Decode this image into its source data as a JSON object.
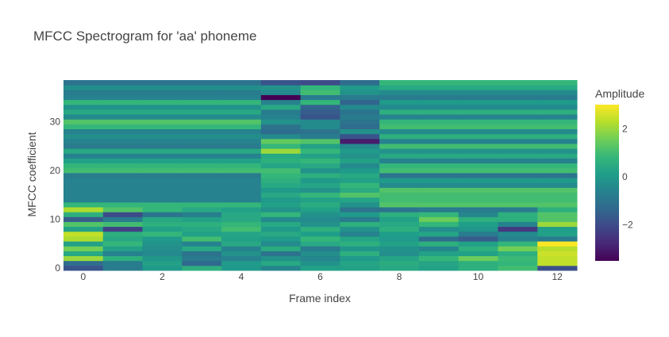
{
  "chart_data": {
    "type": "heatmap",
    "title": "MFCC Spectrogram for 'aa' phoneme",
    "xlabel": "Frame index",
    "ylabel": "MFCC coefficient",
    "x": [
      0,
      1,
      2,
      3,
      4,
      5,
      6,
      7,
      8,
      9,
      10,
      11,
      12
    ],
    "y_range": [
      0,
      38
    ],
    "xticks": [
      0,
      2,
      4,
      6,
      8,
      10,
      12
    ],
    "yticks": [
      0,
      10,
      20,
      30
    ],
    "colorbar": {
      "title": "Amplitude",
      "range": [
        -3.5,
        3.0
      ],
      "ticks": [
        2,
        0,
        -2
      ],
      "tick_labels": [
        "2",
        "0",
        "−2"
      ]
    },
    "colorscale": [
      "#440154",
      "#482878",
      "#3e4989",
      "#31688e",
      "#26828e",
      "#1f9e89",
      "#35b779",
      "#6ece58",
      "#b5de2b",
      "#fde725"
    ],
    "z": [
      [
        -1.8,
        -0.8,
        0.0,
        0.6,
        0.0,
        -0.5,
        0.2,
        0.2,
        0.4,
        0.2,
        0.6,
        1.0,
        -1.9
      ],
      [
        -1.2,
        -0.8,
        0.2,
        -1.3,
        0.0,
        0.4,
        -0.2,
        0.3,
        0.5,
        0.3,
        0.6,
        0.8,
        2.4
      ],
      [
        2.0,
        0.6,
        -0.1,
        -0.8,
        -0.6,
        -0.2,
        -0.5,
        0.0,
        0.3,
        0.8,
        1.5,
        0.9,
        2.4
      ],
      [
        0.4,
        -0.6,
        -0.4,
        -1.0,
        -0.2,
        -1.0,
        -0.3,
        0.6,
        -0.3,
        0.2,
        0.2,
        0.6,
        2.5
      ],
      [
        1.6,
        0.2,
        -0.3,
        0.4,
        -0.6,
        0.5,
        -0.8,
        -0.1,
        -0.2,
        -0.5,
        0.6,
        1.6,
        2.3
      ],
      [
        0.2,
        0.8,
        -0.2,
        -0.6,
        0.4,
        -0.4,
        0.4,
        0.6,
        0.2,
        0.6,
        0.2,
        0.8,
        3.0
      ],
      [
        2.2,
        0.4,
        0.0,
        1.0,
        0.2,
        0.0,
        0.8,
        0.3,
        0.0,
        -1.2,
        -1.6,
        -0.6,
        -0.8
      ],
      [
        2.4,
        0.6,
        0.8,
        0.2,
        0.3,
        0.4,
        0.1,
        -0.6,
        0.1,
        0.3,
        -0.8,
        -0.4,
        0.2
      ],
      [
        0.2,
        -2.2,
        0.2,
        0.4,
        1.0,
        0.0,
        0.6,
        -0.2,
        0.6,
        -0.3,
        -0.1,
        -2.4,
        0.1
      ],
      [
        1.2,
        1.0,
        0.6,
        0.6,
        0.8,
        0.4,
        -0.2,
        0.6,
        0.4,
        0.8,
        0.1,
        -0.6,
        2.0
      ],
      [
        -1.6,
        -0.8,
        0.4,
        0.2,
        0.4,
        -0.4,
        -0.4,
        -0.8,
        0.2,
        1.5,
        0.6,
        0.6,
        1.2
      ],
      [
        0.6,
        -2.0,
        -1.0,
        -0.7,
        0.4,
        0.8,
        -0.2,
        0.0,
        0.6,
        0.8,
        -0.5,
        0.6,
        1.2
      ],
      [
        2.2,
        1.2,
        0.8,
        0.4,
        0.2,
        -0.2,
        0.2,
        -1.0,
        -1.0,
        -0.8,
        -0.8,
        -0.8,
        0.6
      ],
      [
        0.8,
        0.8,
        0.8,
        0.8,
        0.8,
        0.2,
        0.5,
        -0.2,
        1.2,
        1.2,
        1.2,
        1.2,
        1.2
      ],
      [
        -0.6,
        -0.6,
        -0.6,
        -0.6,
        -0.6,
        0.0,
        0.2,
        0.3,
        1.0,
        1.0,
        1.0,
        1.0,
        1.0
      ],
      [
        -0.6,
        -0.6,
        -0.6,
        -0.6,
        -0.6,
        0.4,
        0.8,
        1.2,
        1.0,
        1.0,
        1.0,
        1.0,
        1.0
      ],
      [
        -0.6,
        -0.6,
        -0.6,
        -0.6,
        -0.6,
        0.0,
        -0.2,
        0.5,
        1.2,
        1.2,
        1.2,
        1.2,
        1.2
      ],
      [
        -0.6,
        -0.6,
        -0.6,
        -0.6,
        -0.6,
        0.4,
        0.3,
        0.8,
        -0.4,
        -0.4,
        -0.4,
        -0.4,
        -0.4
      ],
      [
        -0.6,
        -0.6,
        -0.6,
        -0.6,
        -0.6,
        0.6,
        0.0,
        0.2,
        0.0,
        0.0,
        0.0,
        0.0,
        0.0
      ],
      [
        -0.8,
        -0.8,
        -0.8,
        -0.8,
        -0.8,
        0.8,
        0.6,
        0.4,
        -1.0,
        -1.0,
        -1.0,
        -1.0,
        -1.0
      ],
      [
        1.0,
        1.0,
        1.0,
        1.0,
        1.0,
        1.0,
        -0.2,
        0.0,
        1.0,
        1.0,
        1.0,
        1.0,
        1.0
      ],
      [
        0.8,
        0.8,
        0.8,
        0.8,
        0.8,
        0.3,
        0.4,
        -0.4,
        0.8,
        0.8,
        0.8,
        0.8,
        0.8
      ],
      [
        0.2,
        0.2,
        0.2,
        0.2,
        0.2,
        0.6,
        0.8,
        0.2,
        -0.6,
        -0.6,
        -0.6,
        -0.6,
        -0.6
      ],
      [
        -0.6,
        -0.6,
        -0.6,
        -0.6,
        -0.6,
        0.4,
        0.2,
        -0.2,
        0.4,
        0.4,
        0.4,
        0.4,
        0.4
      ],
      [
        0.4,
        0.4,
        0.4,
        0.4,
        0.4,
        2.0,
        0.8,
        0.0,
        -0.2,
        -0.2,
        -0.2,
        -0.2,
        -0.2
      ],
      [
        -0.8,
        -0.8,
        -0.8,
        -0.8,
        -0.8,
        0.8,
        0.2,
        -0.4,
        1.0,
        1.0,
        1.0,
        1.0,
        1.0
      ],
      [
        -0.6,
        -0.6,
        -0.6,
        -0.6,
        -0.6,
        1.4,
        1.2,
        -3.0,
        -0.6,
        -0.6,
        -0.6,
        -0.6,
        -0.6
      ],
      [
        -0.3,
        -0.3,
        -0.3,
        -0.3,
        -0.3,
        -0.4,
        -0.8,
        -1.8,
        0.6,
        0.6,
        0.6,
        0.6,
        0.6
      ],
      [
        -0.6,
        -0.6,
        -0.6,
        -0.6,
        -0.6,
        -1.2,
        -1.0,
        -0.2,
        -0.4,
        -0.4,
        -0.4,
        -0.4,
        -0.4
      ],
      [
        0.8,
        0.8,
        0.8,
        0.8,
        0.8,
        -1.0,
        -0.4,
        -1.2,
        1.0,
        1.0,
        1.0,
        1.0,
        1.0
      ],
      [
        1.2,
        1.2,
        1.2,
        1.2,
        1.2,
        -0.2,
        -0.4,
        -1.0,
        0.8,
        0.8,
        0.8,
        0.8,
        0.8
      ],
      [
        -0.4,
        -0.4,
        -0.4,
        -0.4,
        -0.4,
        -0.6,
        -1.8,
        -0.8,
        -0.6,
        -0.6,
        -0.6,
        -0.6,
        -0.6
      ],
      [
        0.4,
        0.4,
        0.4,
        0.4,
        0.4,
        -0.8,
        -1.6,
        -1.0,
        0.6,
        0.6,
        0.6,
        0.6,
        0.6
      ],
      [
        -0.2,
        -0.2,
        -0.2,
        -0.2,
        -0.2,
        0.4,
        -1.4,
        -0.4,
        -0.4,
        -0.4,
        -0.4,
        -0.4,
        -0.4
      ],
      [
        0.8,
        0.8,
        0.8,
        0.8,
        0.8,
        -0.6,
        0.8,
        -1.4,
        0.0,
        0.0,
        0.0,
        0.0,
        0.0
      ],
      [
        -0.6,
        -0.6,
        -0.6,
        -0.6,
        -0.6,
        -3.5,
        -0.8,
        -0.8,
        -0.8,
        -0.8,
        -0.8,
        -0.8,
        -0.8
      ],
      [
        -0.8,
        -0.8,
        -0.8,
        -0.8,
        -0.8,
        -0.4,
        1.0,
        -0.2,
        -0.4,
        -0.4,
        -0.4,
        -0.4,
        -0.4
      ],
      [
        -0.3,
        -0.3,
        -0.3,
        -0.3,
        -0.3,
        -0.2,
        0.8,
        0.0,
        0.4,
        0.4,
        0.4,
        0.4,
        0.4
      ],
      [
        -1.0,
        -1.0,
        -1.0,
        -1.0,
        -1.0,
        -1.8,
        -2.0,
        -1.2,
        0.8,
        0.8,
        0.8,
        0.8,
        0.8
      ]
    ]
  }
}
